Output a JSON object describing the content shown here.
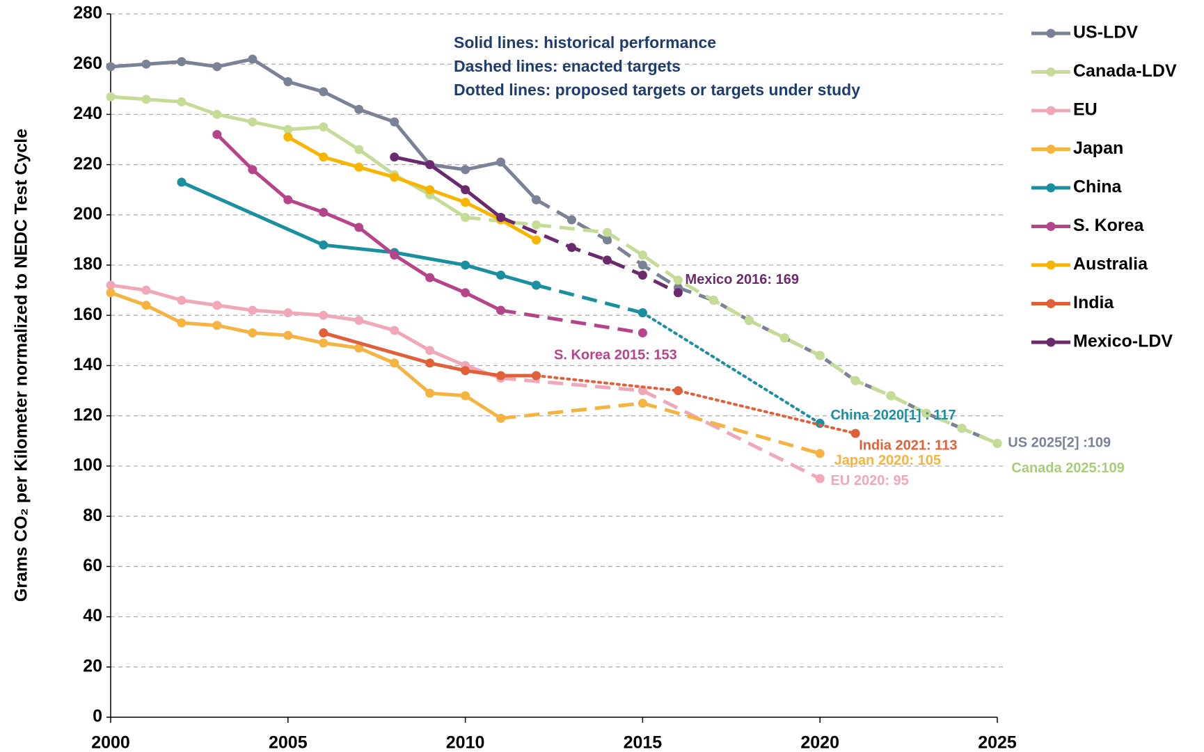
{
  "chart_data": {
    "type": "line",
    "ylabel": "Grams CO₂ per Kilometer normalized to NEDC Test Cycle",
    "notes": [
      "Solid lines: historical performance",
      "Dashed lines: enacted targets",
      "Dotted lines: proposed targets or targets under study"
    ],
    "xlim": [
      2000,
      2025
    ],
    "xticks": [
      2000,
      2005,
      2010,
      2015,
      2020,
      2025
    ],
    "ylim": [
      0,
      280
    ],
    "yticks": [
      0,
      20,
      40,
      60,
      80,
      100,
      120,
      140,
      160,
      180,
      200,
      220,
      240,
      260,
      280
    ],
    "grid": true,
    "legend": "right",
    "series": [
      {
        "name": "US-LDV",
        "color": "#7a8296",
        "segments": [
          {
            "style": "solid",
            "x": [
              2000,
              2001,
              2002,
              2003,
              2004,
              2005,
              2006,
              2007,
              2008,
              2009,
              2010,
              2011,
              2012
            ],
            "values": [
              259,
              260,
              261,
              259,
              262,
              253,
              249,
              242,
              237,
              220,
              218,
              221,
              206
            ]
          },
          {
            "style": "dashed",
            "x": [
              2012,
              2013,
              2014,
              2015,
              2016,
              2017,
              2018,
              2019,
              2020,
              2021,
              2022,
              2023,
              2024,
              2025
            ],
            "values": [
              206,
              198,
              190,
              180,
              171,
              166,
              158,
              151,
              144,
              134,
              128,
              121,
              115,
              109
            ]
          }
        ]
      },
      {
        "name": "Canada-LDV",
        "color": "#c5dc96",
        "segments": [
          {
            "style": "solid",
            "x": [
              2000,
              2001,
              2002,
              2003,
              2004,
              2005,
              2006,
              2007,
              2008,
              2009,
              2010
            ],
            "values": [
              247,
              246,
              245,
              240,
              237,
              234,
              235,
              226,
              216,
              208,
              199
            ]
          },
          {
            "style": "dashed",
            "x": [
              2010,
              2012,
              2014,
              2015,
              2016,
              2017,
              2018,
              2019,
              2020,
              2021,
              2022,
              2023,
              2024,
              2025
            ],
            "values": [
              199,
              196,
              193,
              184,
              174,
              166,
              158,
              151,
              144,
              134,
              128,
              121,
              115,
              109
            ]
          }
        ]
      },
      {
        "name": "EU",
        "color": "#f0a8b8",
        "segments": [
          {
            "style": "solid",
            "x": [
              2000,
              2001,
              2002,
              2003,
              2004,
              2005,
              2006,
              2007,
              2008,
              2009,
              2010,
              2011
            ],
            "values": [
              172,
              170,
              166,
              164,
              162,
              161,
              160,
              158,
              154,
              146,
              140,
              135
            ]
          },
          {
            "style": "dashed",
            "x": [
              2011,
              2015,
              2020
            ],
            "values": [
              135,
              130,
              95
            ]
          }
        ]
      },
      {
        "name": "Japan",
        "color": "#f5b342",
        "segments": [
          {
            "style": "solid",
            "x": [
              2000,
              2001,
              2002,
              2003,
              2004,
              2005,
              2006,
              2007,
              2008,
              2009,
              2010,
              2011
            ],
            "values": [
              169,
              164,
              157,
              156,
              153,
              152,
              149,
              147,
              141,
              129,
              128,
              119
            ]
          },
          {
            "style": "dashed",
            "x": [
              2011,
              2015,
              2020
            ],
            "values": [
              119,
              125,
              105
            ]
          }
        ]
      },
      {
        "name": "China",
        "color": "#1a8fa0",
        "segments": [
          {
            "style": "solid",
            "x": [
              2002,
              2006,
              2008,
              2010,
              2011,
              2012
            ],
            "values": [
              213,
              188,
              185,
              180,
              176,
              172
            ]
          },
          {
            "style": "dashed",
            "x": [
              2012,
              2015
            ],
            "values": [
              172,
              161
            ]
          },
          {
            "style": "dotted",
            "x": [
              2015,
              2020
            ],
            "values": [
              161,
              117
            ]
          }
        ]
      },
      {
        "name": "S. Korea",
        "color": "#b5448a",
        "segments": [
          {
            "style": "solid",
            "x": [
              2003,
              2004,
              2005,
              2006,
              2007,
              2008,
              2009,
              2010,
              2011
            ],
            "values": [
              232,
              218,
              206,
              201,
              195,
              184,
              175,
              169,
              162
            ]
          },
          {
            "style": "dashed",
            "x": [
              2011,
              2015
            ],
            "values": [
              162,
              153
            ]
          }
        ]
      },
      {
        "name": "Australia",
        "color": "#f7b500",
        "segments": [
          {
            "style": "solid",
            "x": [
              2005,
              2006,
              2007,
              2008,
              2009,
              2010,
              2011,
              2012
            ],
            "values": [
              231,
              223,
              219,
              215,
              210,
              205,
              198,
              190
            ]
          }
        ]
      },
      {
        "name": "India",
        "color": "#e0603a",
        "segments": [
          {
            "style": "solid",
            "x": [
              2006,
              2009,
              2010,
              2011,
              2012
            ],
            "values": [
              153,
              141,
              138,
              136,
              136
            ]
          },
          {
            "style": "dotted",
            "x": [
              2012,
              2016,
              2021
            ],
            "values": [
              136,
              130,
              113
            ]
          }
        ]
      },
      {
        "name": "Mexico-LDV",
        "color": "#6b2a6e",
        "segments": [
          {
            "style": "solid",
            "x": [
              2008,
              2009,
              2010,
              2011
            ],
            "values": [
              223,
              220,
              210,
              199
            ]
          },
          {
            "style": "dashed",
            "x": [
              2011,
              2013,
              2014,
              2015,
              2016
            ],
            "values": [
              199,
              187,
              182,
              176,
              169
            ]
          }
        ]
      }
    ],
    "annotations": [
      {
        "text": "Mexico 2016: 169",
        "color": "#6b2a6e"
      },
      {
        "text": "S. Korea 2015: 153",
        "color": "#b5448a"
      },
      {
        "text": "China 2020[1] : 117",
        "color": "#1a8fa0"
      },
      {
        "text": "India 2021: 113",
        "color": "#e0603a"
      },
      {
        "text": "Japan 2020: 105",
        "color": "#f5b342"
      },
      {
        "text": "EU 2020: 95",
        "color": "#f0a8b8"
      },
      {
        "text": "US 2025[2] :109",
        "color": "#7a8296"
      },
      {
        "text": "Canada 2025:109",
        "color": "#a9cc78"
      }
    ]
  }
}
